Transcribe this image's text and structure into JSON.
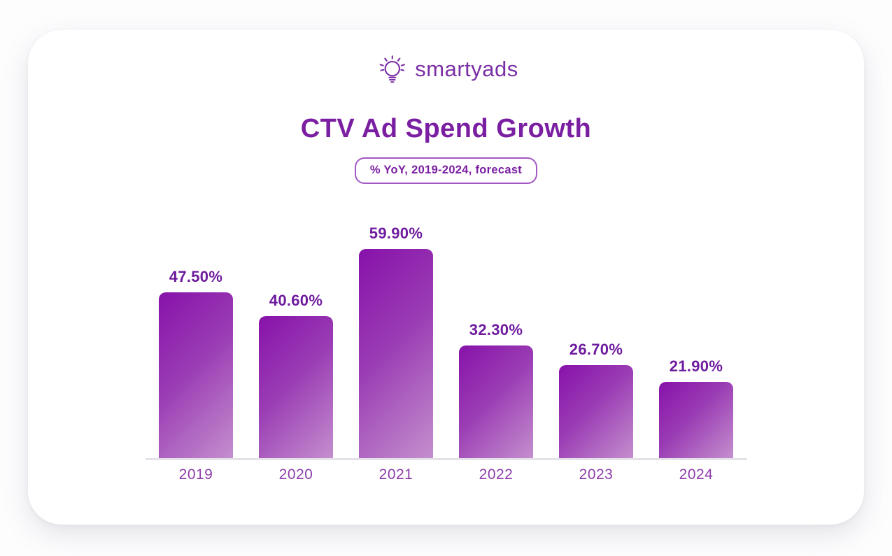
{
  "page": {
    "logo_text": "smartyads",
    "title": "CTV Ad Spend Growth",
    "subtitle_badge": "% YoY, 2019-2024, forecast"
  },
  "icons": {
    "logo": "lightbulb-icon"
  },
  "colors": {
    "brand_purple": "#7b2fa5",
    "title_purple": "#7b1fa2",
    "value_label_purple": "#6e1b9e",
    "axis_label_purple": "#8e3cab",
    "badge_border": "#a158c4",
    "bar_gradient_start": "#8712aa",
    "bar_gradient_end": "#c48fce",
    "axis_line": "#e4e2e8",
    "card_background": "#ffffff"
  },
  "chart_data": {
    "type": "bar",
    "title": "CTV Ad Spend Growth",
    "subtitle": "% YoY, 2019-2024, forecast",
    "categories": [
      "2019",
      "2020",
      "2021",
      "2022",
      "2023",
      "2024"
    ],
    "values": [
      47.5,
      40.6,
      59.9,
      32.3,
      26.7,
      21.9
    ],
    "value_labels": [
      "47.50%",
      "40.60%",
      "59.90%",
      "32.30%",
      "26.70%",
      "21.90%"
    ],
    "unit": "% year-over-year growth",
    "ylim": [
      0,
      60
    ],
    "grid": false,
    "legend": false,
    "bar_style": "purple gradient, rounded top corners, data labels above bars"
  }
}
